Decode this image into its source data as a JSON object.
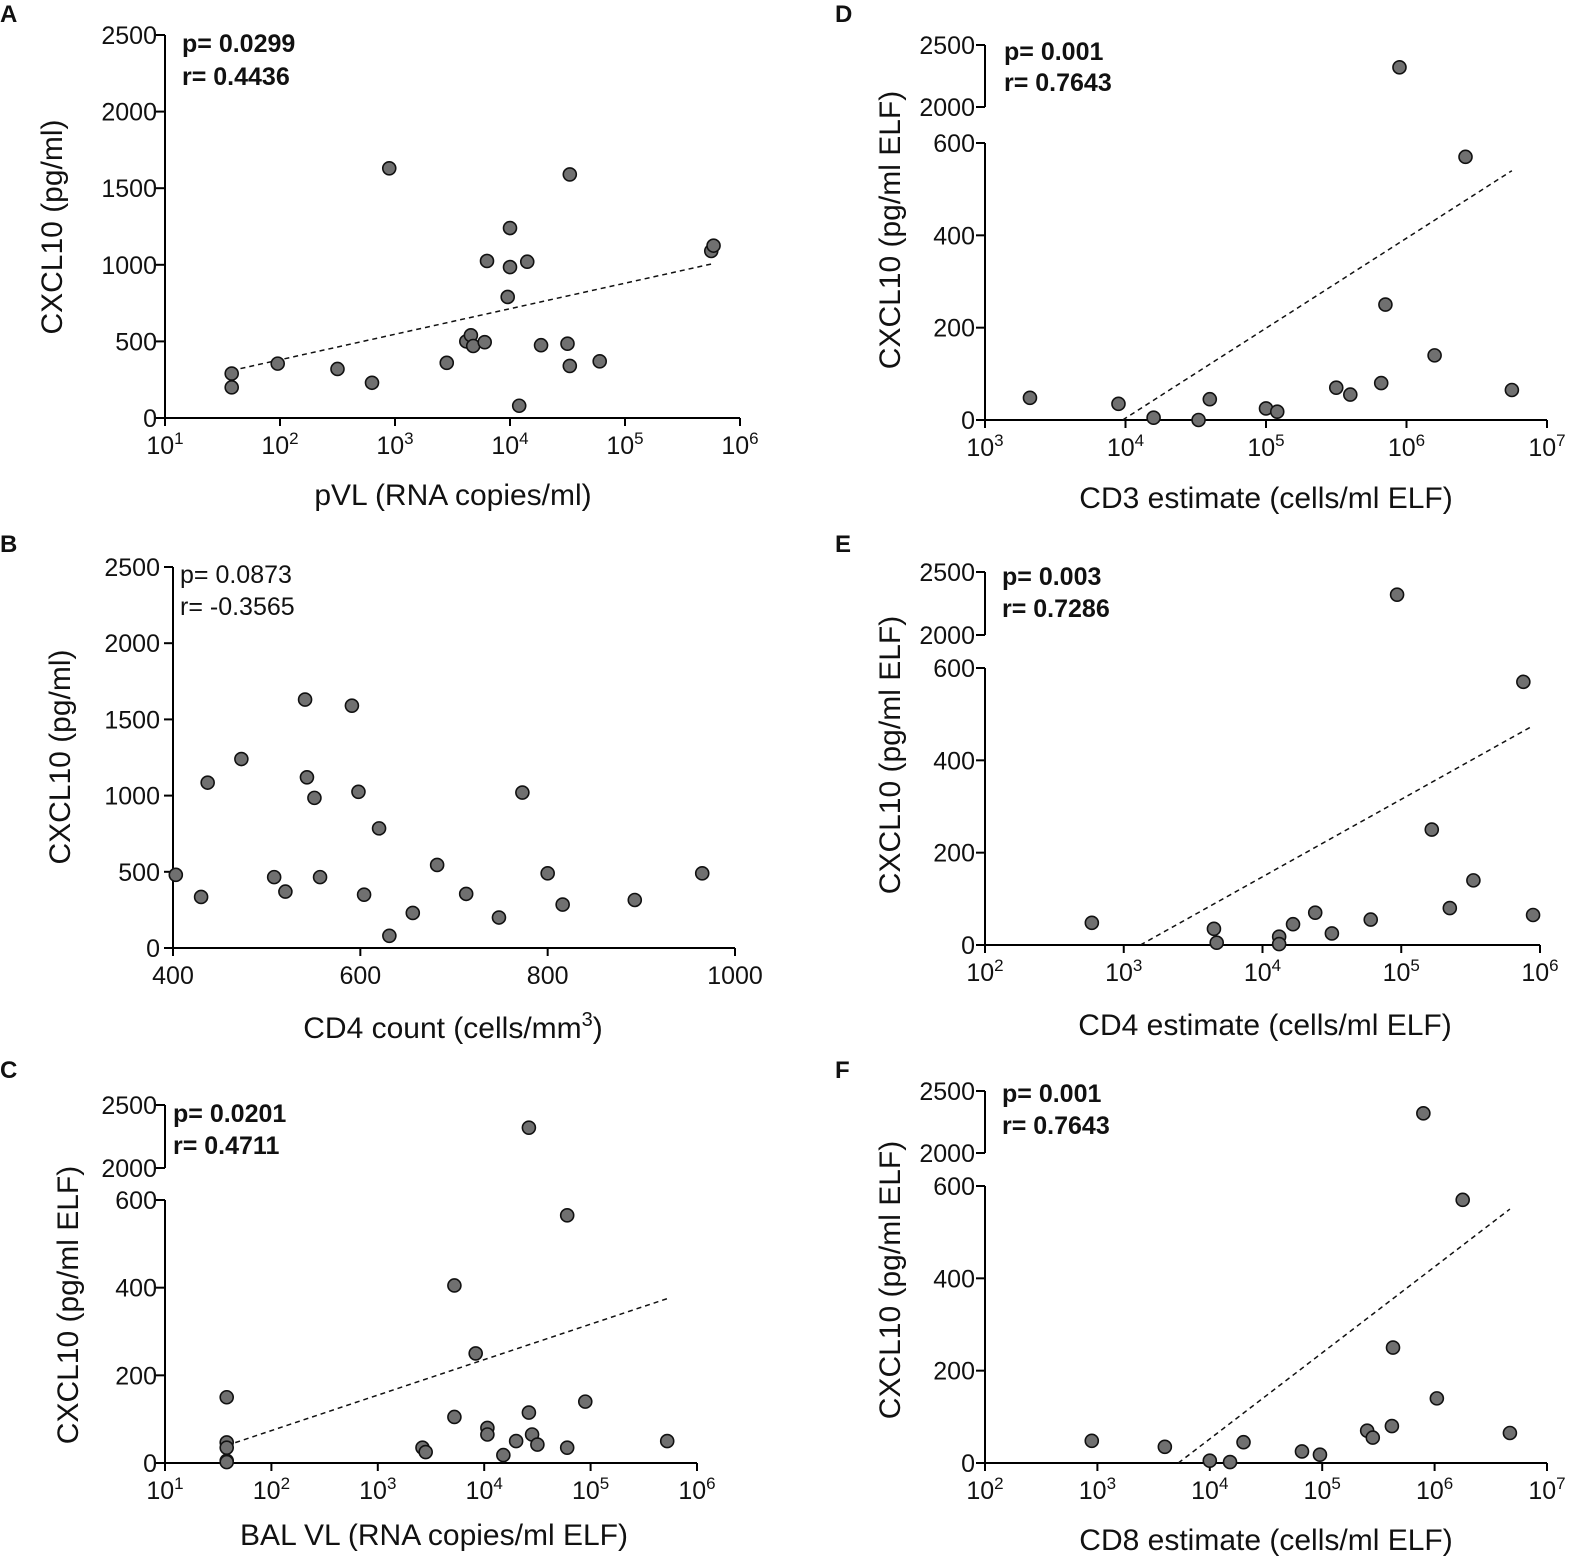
{
  "chart_data": [
    {
      "panel": "A",
      "type": "scatter",
      "xlabel": "pVL (RNA copies/ml)",
      "ylabel": "CXCL10  (pg/ml)",
      "xscale": "log",
      "xlim_exp": [
        1,
        6
      ],
      "x_tick_exponents": [
        1,
        2,
        3,
        4,
        5,
        6
      ],
      "y_ticks": [
        "0",
        "500",
        "1000",
        "1500",
        "2000",
        "2500"
      ],
      "ylim": [
        0,
        2500
      ],
      "stats": {
        "p": "p= 0.0299",
        "r": "r= 0.4436",
        "bold": true
      },
      "points": [
        [
          1.58,
          290
        ],
        [
          1.58,
          200
        ],
        [
          1.98,
          355
        ],
        [
          2.5,
          320
        ],
        [
          2.8,
          230
        ],
        [
          2.95,
          1630
        ],
        [
          3.45,
          360
        ],
        [
          3.62,
          500
        ],
        [
          3.66,
          540
        ],
        [
          3.68,
          470
        ],
        [
          3.78,
          495
        ],
        [
          3.8,
          1025
        ],
        [
          3.98,
          790
        ],
        [
          4.0,
          1240
        ],
        [
          4.0,
          985
        ],
        [
          4.08,
          80
        ],
        [
          4.15,
          1020
        ],
        [
          4.27,
          475
        ],
        [
          4.5,
          485
        ],
        [
          4.52,
          1590
        ],
        [
          4.52,
          340
        ],
        [
          4.78,
          370
        ],
        [
          5.75,
          1090
        ],
        [
          5.77,
          1125
        ]
      ],
      "fit_line": [
        [
          1.58,
          310
        ],
        [
          5.75,
          1005
        ]
      ]
    },
    {
      "panel": "B",
      "type": "scatter",
      "xlabel": "CD4 count (cells/mm",
      "xlabel_sup": "3",
      "xlabel_end": ")",
      "ylabel": "CXCL10 (pg/ml)",
      "xscale": "linear",
      "xlim": [
        400,
        1000
      ],
      "x_ticks": [
        "400",
        "600",
        "800",
        "1000"
      ],
      "y_ticks": [
        "0",
        "500",
        "1000",
        "1500",
        "2000",
        "2500"
      ],
      "ylim": [
        0,
        2500
      ],
      "stats": {
        "p": "p= 0.0873",
        "r": "r= -0.3565",
        "bold": false
      },
      "points": [
        [
          403,
          480
        ],
        [
          430,
          335
        ],
        [
          437,
          1085
        ],
        [
          473,
          1240
        ],
        [
          508,
          465
        ],
        [
          520,
          370
        ],
        [
          541,
          1630
        ],
        [
          543,
          1120
        ],
        [
          551,
          985
        ],
        [
          557,
          465
        ],
        [
          591,
          1590
        ],
        [
          598,
          1025
        ],
        [
          604,
          350
        ],
        [
          620,
          785
        ],
        [
          631,
          80
        ],
        [
          656,
          230
        ],
        [
          682,
          545
        ],
        [
          713,
          355
        ],
        [
          748,
          200
        ],
        [
          773,
          1020
        ],
        [
          800,
          490
        ],
        [
          816,
          285
        ],
        [
          893,
          315
        ],
        [
          965,
          490
        ]
      ]
    },
    {
      "panel": "C",
      "type": "scatter",
      "xlabel": "BAL VL (RNA copies/ml ELF)",
      "ylabel": "CXCL10  (pg/ml ELF)",
      "xscale": "log",
      "xlim_exp": [
        1,
        6
      ],
      "x_tick_exponents": [
        1,
        2,
        3,
        4,
        5,
        6
      ],
      "y_ticks_lower": [
        "0",
        "200",
        "400",
        "600"
      ],
      "y_ticks_upper": [
        "2000",
        "2500"
      ],
      "ylim_lower": [
        0,
        600
      ],
      "ylim_upper": [
        2000,
        2500
      ],
      "stats": {
        "p": "p= 0.0201",
        "r": "r= 0.4711",
        "bold": true
      },
      "points": [
        [
          1.58,
          150
        ],
        [
          1.58,
          47
        ],
        [
          1.58,
          35
        ],
        [
          1.58,
          5
        ],
        [
          1.58,
          2
        ],
        [
          3.42,
          35
        ],
        [
          3.45,
          25
        ],
        [
          3.72,
          405
        ],
        [
          3.72,
          105
        ],
        [
          3.92,
          250
        ],
        [
          4.03,
          80
        ],
        [
          4.03,
          65
        ],
        [
          4.18,
          18
        ],
        [
          4.3,
          50
        ],
        [
          4.42,
          115
        ],
        [
          4.45,
          65
        ],
        [
          4.5,
          42
        ],
        [
          4.42,
          2320
        ],
        [
          4.78,
          35
        ],
        [
          4.78,
          565
        ],
        [
          4.95,
          140
        ],
        [
          5.72,
          50
        ]
      ],
      "fit_line": [
        [
          1.58,
          40
        ],
        [
          5.72,
          375
        ]
      ]
    },
    {
      "panel": "D",
      "type": "scatter",
      "xlabel": "CD3 estimate (cells/ml ELF)",
      "ylabel": "CXCL10  (pg/ml ELF)",
      "xscale": "log",
      "xlim_exp": [
        3,
        7
      ],
      "x_tick_exponents": [
        3,
        4,
        5,
        6,
        7
      ],
      "y_ticks_lower": [
        "0",
        "200",
        "400",
        "600"
      ],
      "y_ticks_upper": [
        "2000",
        "2500"
      ],
      "ylim_lower": [
        0,
        600
      ],
      "ylim_upper": [
        2000,
        2500
      ],
      "stats": {
        "p": "p= 0.001",
        "r": "r= 0.7643",
        "bold": true
      },
      "points": [
        [
          3.32,
          48
        ],
        [
          3.95,
          35
        ],
        [
          4.2,
          5
        ],
        [
          4.52,
          0
        ],
        [
          4.6,
          45
        ],
        [
          5.0,
          25
        ],
        [
          5.08,
          18
        ],
        [
          5.5,
          70
        ],
        [
          5.6,
          55
        ],
        [
          5.82,
          80
        ],
        [
          5.85,
          250
        ],
        [
          5.95,
          2320
        ],
        [
          6.2,
          140
        ],
        [
          6.42,
          570
        ],
        [
          6.75,
          65
        ]
      ],
      "fit_line": [
        [
          3.98,
          0
        ],
        [
          6.75,
          540
        ]
      ]
    },
    {
      "panel": "E",
      "type": "scatter",
      "xlabel": "CD4 estimate (cells/ml ELF)",
      "ylabel": "CXCL10  (pg/ml ELF)",
      "xscale": "log",
      "xlim_exp": [
        2,
        6
      ],
      "x_tick_exponents": [
        2,
        3,
        4,
        5,
        6
      ],
      "y_ticks_lower": [
        "0",
        "200",
        "400",
        "600"
      ],
      "y_ticks_upper": [
        "2000",
        "2500"
      ],
      "ylim_lower": [
        0,
        600
      ],
      "ylim_upper": [
        2000,
        2500
      ],
      "stats": {
        "p": "p= 0.003",
        "r": "r= 0.7286",
        "bold": true
      },
      "points": [
        [
          2.77,
          48
        ],
        [
          3.65,
          35
        ],
        [
          3.67,
          5
        ],
        [
          4.12,
          18
        ],
        [
          4.12,
          2
        ],
        [
          4.22,
          45
        ],
        [
          4.38,
          70
        ],
        [
          4.5,
          25
        ],
        [
          4.78,
          55
        ],
        [
          4.97,
          2320
        ],
        [
          5.22,
          250
        ],
        [
          5.35,
          80
        ],
        [
          5.52,
          140
        ],
        [
          5.88,
          570
        ],
        [
          5.95,
          65
        ]
      ],
      "fit_line": [
        [
          3.12,
          0
        ],
        [
          5.95,
          475
        ]
      ]
    },
    {
      "panel": "F",
      "type": "scatter",
      "xlabel": "CD8 estimate (cells/ml ELF)",
      "ylabel": "CXCL10  (pg/ml ELF)",
      "xscale": "log",
      "xlim_exp": [
        2,
        7
      ],
      "x_tick_exponents": [
        2,
        3,
        4,
        5,
        6,
        7
      ],
      "y_ticks_lower": [
        "0",
        "200",
        "400",
        "600"
      ],
      "y_ticks_upper": [
        "2000",
        "2500"
      ],
      "ylim_lower": [
        0,
        600
      ],
      "ylim_upper": [
        2000,
        2500
      ],
      "stats": {
        "p": "p= 0.001",
        "r": "r= 0.7643",
        "bold": true
      },
      "points": [
        [
          2.95,
          48
        ],
        [
          3.6,
          35
        ],
        [
          4.0,
          5
        ],
        [
          4.18,
          2
        ],
        [
          4.3,
          45
        ],
        [
          4.82,
          25
        ],
        [
          4.98,
          18
        ],
        [
          5.4,
          70
        ],
        [
          5.45,
          55
        ],
        [
          5.62,
          80
        ],
        [
          5.63,
          250
        ],
        [
          5.9,
          2320
        ],
        [
          6.02,
          140
        ],
        [
          6.25,
          570
        ],
        [
          6.67,
          65
        ]
      ],
      "fit_line": [
        [
          3.72,
          0
        ],
        [
          6.67,
          550
        ]
      ]
    }
  ]
}
